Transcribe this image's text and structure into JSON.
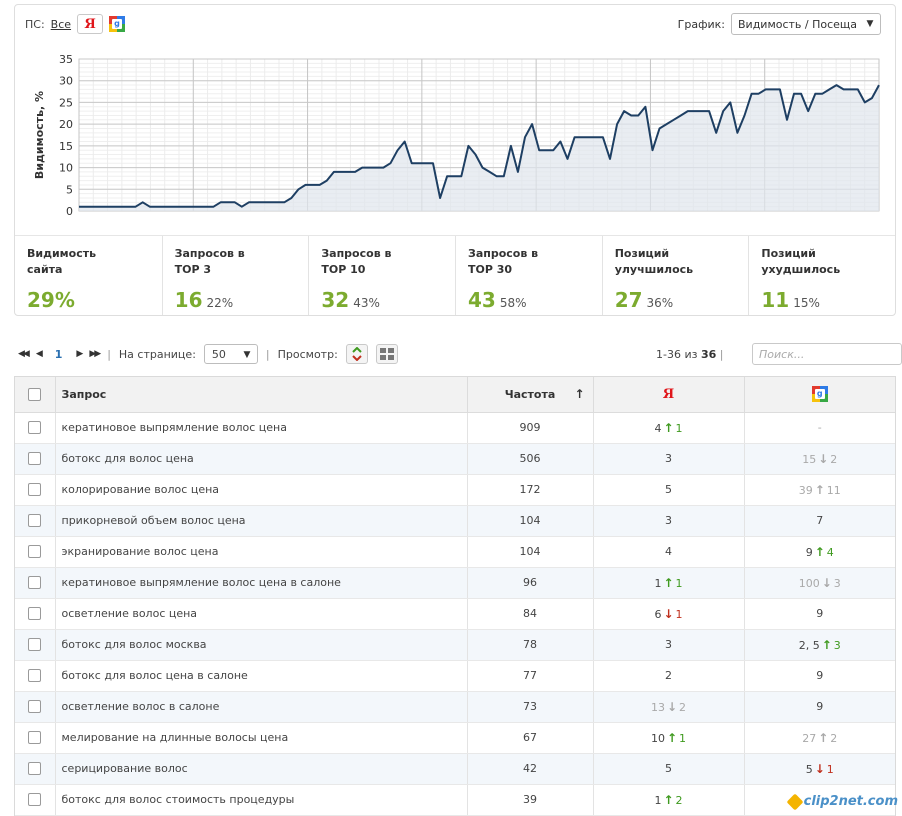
{
  "filter": {
    "ps_label": "ПС:",
    "all_label": "Все",
    "yandex_glyph": "Я",
    "google_glyph": "g"
  },
  "graph": {
    "label": "График:",
    "selected": "Видимость / Посещаемо"
  },
  "chart_data": {
    "type": "area",
    "ylabel": "Видимость, %",
    "ylim": [
      0,
      35
    ],
    "yticks": [
      0,
      5,
      10,
      15,
      20,
      25,
      30,
      35
    ],
    "color": "#1e3f63",
    "fill": "#dfe5ec",
    "values": [
      1,
      1,
      1,
      1,
      1,
      1,
      1,
      1,
      1,
      2,
      1,
      1,
      1,
      1,
      1,
      1,
      1,
      1,
      1,
      1,
      2,
      2,
      2,
      1,
      2,
      2,
      2,
      2,
      2,
      2,
      3,
      5,
      6,
      6,
      6,
      7,
      9,
      9,
      9,
      9,
      10,
      10,
      10,
      10,
      11,
      14,
      16,
      11,
      11,
      11,
      11,
      3,
      8,
      8,
      8,
      15,
      13,
      10,
      9,
      8,
      8,
      15,
      9,
      17,
      20,
      14,
      14,
      14,
      16,
      12,
      17,
      17,
      17,
      17,
      17,
      12,
      20,
      23,
      22,
      22,
      24,
      14,
      19,
      20,
      21,
      22,
      23,
      23,
      23,
      23,
      18,
      23,
      25,
      18,
      22,
      27,
      27,
      28,
      28,
      28,
      21,
      27,
      27,
      23,
      27,
      27,
      28,
      29,
      28,
      28,
      28,
      25,
      26,
      29
    ]
  },
  "stats": [
    {
      "label": "Видимость\nсайта",
      "value": "29%",
      "pct": ""
    },
    {
      "label": "Запросов в\nTOP 3",
      "value": "16",
      "pct": "22%"
    },
    {
      "label": "Запросов в\nTOP 10",
      "value": "32",
      "pct": "43%"
    },
    {
      "label": "Запросов в\nTOP 30",
      "value": "43",
      "pct": "58%"
    },
    {
      "label": "Позиций\nулучшилось",
      "value": "27",
      "pct": "36%"
    },
    {
      "label": "Позиций\nухудшилось",
      "value": "11",
      "pct": "15%"
    }
  ],
  "pager": {
    "current_page": "1",
    "per_page_label": "На странице:",
    "per_page": "50",
    "view_label": "Просмотр:",
    "range_prefix": "1-36 из",
    "total": "36",
    "range_sep": "|"
  },
  "search": {
    "placeholder": "Поиск..."
  },
  "table": {
    "headers": {
      "query": "Запрос",
      "freq": "Частота",
      "sort": "↑",
      "yandex": "Я",
      "google": "g"
    },
    "rows": [
      {
        "q": "кератиновое выпрямление волос цена",
        "f": "909",
        "ya": {
          "pos": "4",
          "dir": "up",
          "delta": "1"
        },
        "g": {
          "pos": "-",
          "muted": true
        }
      },
      {
        "q": "ботокс для волос цена",
        "f": "506",
        "ya": {
          "pos": "3"
        },
        "g": {
          "pos": "15",
          "dir": "down",
          "delta": "2",
          "muted": true
        }
      },
      {
        "q": "колорирование волос цена",
        "f": "172",
        "ya": {
          "pos": "5"
        },
        "g": {
          "pos": "39",
          "dir": "up",
          "delta": "11",
          "muted": true
        }
      },
      {
        "q": "прикорневой объем волос цена",
        "f": "104",
        "ya": {
          "pos": "3"
        },
        "g": {
          "pos": "7"
        }
      },
      {
        "q": "экранирование волос цена",
        "f": "104",
        "ya": {
          "pos": "4"
        },
        "g": {
          "pos": "9",
          "dir": "up",
          "delta": "4"
        }
      },
      {
        "q": "кератиновое выпрямление волос цена в салоне",
        "f": "96",
        "ya": {
          "pos": "1",
          "dir": "up",
          "delta": "1"
        },
        "g": {
          "pos": "100",
          "dir": "down",
          "delta": "3",
          "muted": true
        }
      },
      {
        "q": "осветление волос цена",
        "f": "84",
        "ya": {
          "pos": "6",
          "dir": "down",
          "delta": "1"
        },
        "g": {
          "pos": "9"
        }
      },
      {
        "q": "ботокс для волос москва",
        "f": "78",
        "ya": {
          "pos": "3"
        },
        "g": {
          "pos": "2, 5",
          "dir": "up",
          "delta": "3"
        }
      },
      {
        "q": "ботокс для волос цена в салоне",
        "f": "77",
        "ya": {
          "pos": "2"
        },
        "g": {
          "pos": "9"
        }
      },
      {
        "q": "осветление волос в салоне",
        "f": "73",
        "ya": {
          "pos": "13",
          "dir": "down",
          "delta": "2",
          "muted": true
        },
        "g": {
          "pos": "9"
        }
      },
      {
        "q": "мелирование на длинные волосы цена",
        "f": "67",
        "ya": {
          "pos": "10",
          "dir": "up",
          "delta": "1"
        },
        "g": {
          "pos": "27",
          "dir": "up",
          "delta": "2",
          "muted": true
        }
      },
      {
        "q": "серицирование волос",
        "f": "42",
        "ya": {
          "pos": "5"
        },
        "g": {
          "pos": "5",
          "dir": "down",
          "delta": "1"
        }
      },
      {
        "q": "ботокс для волос стоимость процедуры",
        "f": "39",
        "ya": {
          "pos": "1",
          "dir": "up",
          "delta": "2"
        },
        "g": {
          "pos": "",
          "muted": true
        }
      }
    ]
  },
  "watermark": "clip2net.com"
}
